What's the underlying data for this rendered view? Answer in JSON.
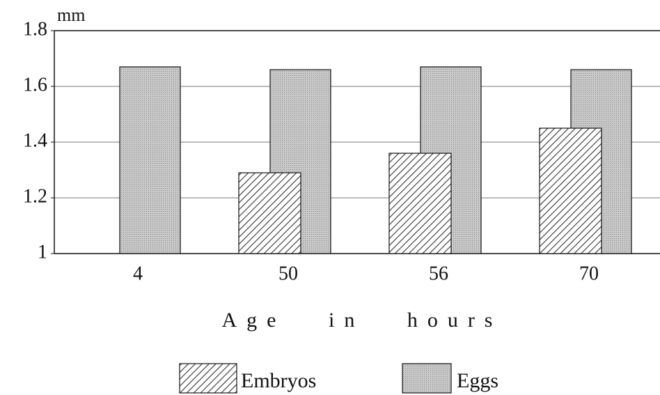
{
  "chart_data": {
    "type": "bar",
    "y_label": "mm",
    "x_label": "Age in hours",
    "categories": [
      "4",
      "50",
      "56",
      "70"
    ],
    "series": [
      {
        "name": "Embryos",
        "color": "#333333",
        "values": [
          null,
          1.29,
          1.36,
          1.45
        ]
      },
      {
        "name": "Eggs",
        "color": "#c8c8c8",
        "values": [
          1.67,
          1.66,
          1.67,
          1.66
        ]
      }
    ],
    "ylim": [
      1,
      1.8
    ],
    "yticks": [
      1,
      1.2,
      1.4,
      1.6,
      1.8
    ],
    "grid": true
  }
}
